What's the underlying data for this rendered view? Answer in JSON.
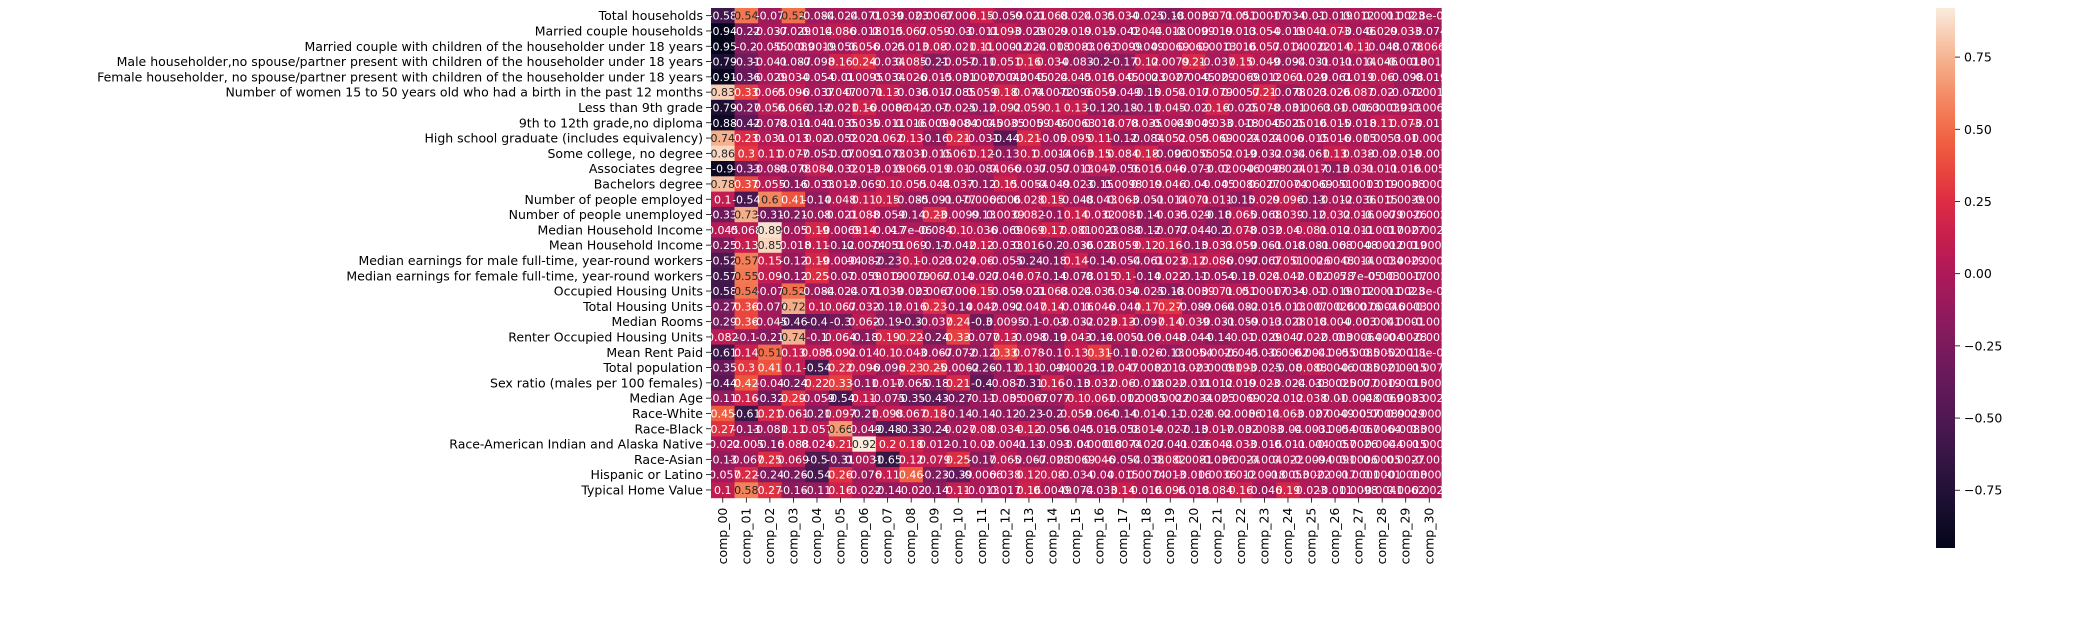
{
  "chart_data": {
    "type": "heatmap",
    "title": "",
    "xlabel": "",
    "ylabel": "",
    "colormap": "rocket",
    "vmin": -0.95,
    "vmax": 0.92,
    "colorbar_ticks": [
      {
        "value": 0.75,
        "label": "0.75"
      },
      {
        "value": 0.5,
        "label": "0.50"
      },
      {
        "value": 0.25,
        "label": "0.25"
      },
      {
        "value": 0.0,
        "label": "0.00"
      },
      {
        "value": -0.25,
        "label": "−0.25"
      },
      {
        "value": -0.5,
        "label": "−0.50"
      },
      {
        "value": -0.75,
        "label": "−0.75"
      }
    ],
    "x_labels": [
      "comp_00",
      "comp_01",
      "comp_02",
      "comp_03",
      "comp_04",
      "comp_05",
      "comp_06",
      "comp_07",
      "comp_08",
      "comp_09",
      "comp_10",
      "comp_11",
      "comp_12",
      "comp_13",
      "comp_14",
      "comp_15",
      "comp_16",
      "comp_17",
      "comp_18",
      "comp_19",
      "comp_20",
      "comp_21",
      "comp_22",
      "comp_23",
      "comp_24",
      "comp_25",
      "comp_26",
      "comp_27",
      "comp_28",
      "comp_29",
      "comp_30"
    ],
    "y_labels": [
      "Total households",
      "Married couple households",
      "Married couple with children of the householder under 18 years",
      "Male householder,no spouse/partner present with children of the householder under 18 years",
      "Female householder, no spouse/partner present with children of the householder under 18 years",
      "Number of women 15 to 50 years old who had a birth in the past 12 months",
      "Less than 9th grade",
      "9th to 12th grade,no diploma",
      "High school graduate (includes equivalency)",
      "Some college, no degree",
      "Associates degree",
      "Bachelors degree",
      "Number of people employed",
      "Number of people unemployed",
      "Median Household Income",
      "Mean Household Income",
      "Median earnings for male full-time, year-round workers",
      "Median earnings for female full-time, year-round workers",
      "Occupied Housing Units",
      "Total Housing Units",
      "Median Rooms",
      "Renter Occupied Housing Units",
      "Mean Rent Paid",
      "Total population",
      "Sex ratio (males per 100 females)",
      "Median Age",
      "Race-White",
      "Race-Black",
      "Race-American Indian and Alaska Native",
      "Race-Asian",
      "Hispanic or Latino",
      "Typical Home Value"
    ],
    "values": [
      [
        -0.58,
        0.54,
        -0.07,
        0.52,
        -0.084,
        -0.024,
        -0.071,
        0.039,
        -0.023,
        0.0067,
        -0.006,
        0.15,
        -0.059,
        -0.021,
        0.068,
        0.024,
        0.035,
        0.034,
        -0.025,
        -0.18,
        -0.0039,
        0.071,
        0.051,
        0.00017,
        -0.034,
        -0.01,
        -0.019,
        0.012,
        0.0011,
        0.0023,
        2.8e-05
      ],
      [
        -0.94,
        -0.22,
        -0.037,
        -0.029,
        0.014,
        0.086,
        -0.018,
        0.015,
        0.067,
        0.059,
        -0.03,
        -0.011,
        0.093,
        -0.029,
        0.029,
        0.019,
        0.015,
        -0.042,
        0.044,
        0.018,
        -0.0099,
        0.019,
        0.013,
        0.054,
        -0.019,
        0.041,
        0.073,
        -0.046,
        0.029,
        0.033,
        -0.074
      ],
      [
        -0.95,
        -0.2,
        -0.055,
        -0.0089,
        0.0019,
        -0.056,
        0.056,
        -0.025,
        -0.013,
        0.08,
        -0.021,
        0.11,
        -0.00012,
        -0.024,
        -0.018,
        0.0083,
        -0.063,
        0.0099,
        -0.049,
        0.0069,
        0.069,
        0.0013,
        0.016,
        0.057,
        0.014,
        0.0022,
        0.014,
        0.11,
        -0.048,
        -0.078,
        0.066
      ],
      [
        -0.79,
        -0.31,
        -0.041,
        -0.087,
        -0.098,
        0.16,
        0.24,
        -0.034,
        0.085,
        -0.21,
        -0.057,
        -0.11,
        0.051,
        0.16,
        0.034,
        -0.083,
        -0.2,
        -0.17,
        0.12,
        0.0079,
        0.21,
        -0.037,
        0.15,
        0.049,
        -0.094,
        -0.031,
        -0.011,
        -0.014,
        0.046,
        -0.0018,
        0.0018
      ],
      [
        -0.91,
        -0.36,
        -0.029,
        0.034,
        -0.054,
        -0.01,
        0.0095,
        -0.034,
        0.026,
        -0.015,
        -0.031,
        0.0077,
        -0.0042,
        0.0045,
        0.024,
        0.045,
        0.015,
        0.045,
        0.0023,
        0.0027,
        -0.0045,
        -0.029,
        0.0069,
        -0.012,
        0.061,
        0.029,
        -0.061,
        0.019,
        0.06,
        -0.098,
        -0.019
      ],
      [
        0.83,
        0.33,
        0.065,
        0.096,
        -0.037,
        0.047,
        0.0071,
        0.13,
        -0.036,
        -0.017,
        -0.085,
        0.059,
        0.18,
        0.074,
        -0.0072,
        -0.096,
        0.059,
        -0.049,
        -0.15,
        0.054,
        0.017,
        0.079,
        0.0057,
        0.21,
        -0.078,
        0.023,
        0.026,
        0.087,
        0.02,
        -0.072,
        -0.0018
      ],
      [
        -0.79,
        -0.27,
        0.056,
        0.066,
        -0.12,
        -0.021,
        0.16,
        -0.0086,
        0.042,
        -0.07,
        -0.025,
        -0.12,
        0.092,
        0.059,
        0.1,
        0.13,
        -0.12,
        -0.18,
        -0.11,
        0.045,
        -0.02,
        0.16,
        -0.025,
        0.078,
        -0.031,
        0.0063,
        0.01,
        -0.0063,
        -0.00039,
        0.013,
        -0.0068
      ],
      [
        -0.88,
        -0.42,
        -0.078,
        -0.011,
        -0.041,
        -0.035,
        0.035,
        -0.011,
        0.016,
        -0.0094,
        0.0084,
        -0.0045,
        0.0035,
        -0.0059,
        0.046,
        0.0063,
        0.018,
        0.078,
        0.035,
        -0.0049,
        -0.0049,
        0.033,
        -0.018,
        -0.0045,
        -0.025,
        0.016,
        0.015,
        -0.018,
        0.11,
        0.073,
        -0.017
      ],
      [
        0.74,
        0.23,
        0.031,
        0.013,
        0.02,
        -0.052,
        0.021,
        0.062,
        0.13,
        -0.16,
        0.21,
        -0.031,
        -0.44,
        0.21,
        -0.05,
        0.095,
        0.11,
        -0.12,
        -0.084,
        0.052,
        0.055,
        0.069,
        0.0024,
        -0.024,
        0.006,
        -0.015,
        0.016,
        -0.015,
        0.0053,
        0.01,
        -0.0003
      ],
      [
        0.86,
        0.3,
        0.11,
        0.077,
        -0.051,
        -0.07,
        0.0091,
        -0.073,
        0.031,
        -0.015,
        0.061,
        0.12,
        -0.13,
        0.1,
        0.0014,
        -0.063,
        0.15,
        0.084,
        0.18,
        -0.096,
        0.0055,
        0.052,
        0.019,
        -0.032,
        -0.034,
        -0.061,
        0.13,
        0.038,
        -0.02,
        0.018,
        -0.007
      ],
      [
        -0.9,
        -0.33,
        -0.088,
        -0.078,
        0.084,
        -0.032,
        0.013,
        -0.019,
        0.065,
        0.019,
        0.01,
        -0.084,
        0.066,
        -0.037,
        -0.057,
        -0.013,
        0.047,
        -0.056,
        0.015,
        0.046,
        -0.073,
        -0.02,
        0.0046,
        -0.0098,
        -0.024,
        0.017,
        -0.13,
        0.031,
        0.011,
        0.016,
        0.005
      ],
      [
        0.78,
        0.37,
        0.055,
        -0.16,
        -0.033,
        0.012,
        -0.069,
        0.1,
        0.055,
        0.044,
        0.037,
        -0.12,
        0.15,
        0.0054,
        -0.049,
        -0.023,
        -0.15,
        0.0098,
        0.019,
        0.046,
        -0.04,
        -0.045,
        0.0086,
        0.027,
        0.0074,
        -0.0069,
        -0.051,
        -0.0013,
        0.019,
        0.0038,
        -0.0009
      ],
      [
        0.1,
        -0.54,
        0.6,
        0.41,
        -0.14,
        0.048,
        0.11,
        0.15,
        -0.085,
        -0.091,
        -0.077,
        -0.0066,
        0.006,
        0.028,
        0.15,
        -0.048,
        -0.043,
        0.063,
        -0.051,
        -0.014,
        0.071,
        0.011,
        -0.15,
        0.029,
        0.096,
        -0.13,
        -0.012,
        -0.036,
        0.015,
        0.0039,
        -0.001
      ],
      [
        -0.33,
        0.73,
        -0.31,
        -0.21,
        -0.08,
        -0.021,
        0.088,
        -0.059,
        -0.14,
        0.23,
        -0.0099,
        -0.13,
        0.0039,
        0.082,
        -0.1,
        0.14,
        0.032,
        0.0081,
        -0.14,
        -0.035,
        -0.029,
        -0.18,
        0.065,
        -0.068,
        0.039,
        -0.12,
        0.032,
        0.016,
        -0.0079,
        -0.0026,
        -0.002
      ],
      [
        0.045,
        0.068,
        0.89,
        -0.05,
        0.19,
        -0.0069,
        0.14,
        -0.017,
        4.7e-06,
        -0.084,
        0.1,
        0.036,
        -0.069,
        0.069,
        0.17,
        0.081,
        0.0023,
        -0.088,
        -0.12,
        -0.077,
        -0.044,
        -0.2,
        0.078,
        -0.032,
        0.04,
        0.081,
        0.012,
        0.011,
        -0.0017,
        0.0027,
        -0.0022
      ],
      [
        -0.25,
        0.13,
        0.85,
        -0.018,
        0.11,
        -0.12,
        -0.0074,
        -0.051,
        0.069,
        -0.17,
        -0.042,
        0.12,
        -0.033,
        0.016,
        -0.2,
        -0.036,
        -0.028,
        0.059,
        0.12,
        0.16,
        -0.13,
        0.033,
        0.059,
        -0.061,
        -0.018,
        -0.081,
        -0.068,
        0.0048,
        -0.0012,
        -0.0019,
        0.0004
      ],
      [
        -0.52,
        0.57,
        0.15,
        -0.12,
        0.19,
        -0.0094,
        -0.082,
        -0.23,
        0.1,
        -0.023,
        -0.024,
        0.06,
        -0.055,
        -0.24,
        -0.18,
        0.14,
        -0.14,
        -0.054,
        -0.061,
        0.023,
        0.12,
        0.086,
        -0.097,
        -0.067,
        0.051,
        0.0026,
        0.0048,
        0.014,
        -0.0034,
        0.0029,
        -0.0005
      ],
      [
        -0.57,
        0.55,
        0.09,
        -0.12,
        0.25,
        -0.07,
        -0.059,
        0.019,
        0.0079,
        0.067,
        0.014,
        -0.027,
        -0.046,
        0.07,
        -0.14,
        -0.078,
        -0.015,
        0.1,
        -0.14,
        0.022,
        -0.11,
        -0.054,
        -0.13,
        0.024,
        0.042,
        -0.012,
        0.0078,
        -5.7e-05,
        -0.003,
        -0.0017,
        -0.001
      ],
      [
        -0.58,
        0.54,
        -0.07,
        0.52,
        -0.084,
        -0.024,
        -0.071,
        0.039,
        -0.023,
        0.0067,
        -0.006,
        0.15,
        -0.059,
        -0.021,
        0.068,
        0.024,
        0.035,
        0.034,
        -0.025,
        -0.18,
        -0.0039,
        0.071,
        0.051,
        0.00017,
        -0.034,
        -0.01,
        -0.019,
        0.012,
        0.0011,
        0.0023,
        2.8e-05
      ],
      [
        -0.27,
        0.36,
        -0.077,
        0.72,
        0.1,
        0.067,
        0.032,
        -0.12,
        0.016,
        0.23,
        -0.14,
        0.042,
        -0.092,
        -0.047,
        0.14,
        -0.016,
        0.046,
        -0.044,
        0.17,
        0.27,
        -0.089,
        -0.064,
        -0.082,
        -0.015,
        -0.013,
        0.007,
        0.0026,
        0.00076,
        0.00046,
        -0.0003,
        -0.001
      ],
      [
        -0.29,
        0.36,
        -0.045,
        -0.46,
        -0.4,
        -0.3,
        0.062,
        -0.19,
        -0.3,
        -0.037,
        0.24,
        -0.3,
        0.0095,
        -0.1,
        -0.03,
        -0.032,
        -0.023,
        0.13,
        -0.097,
        0.14,
        0.039,
        -0.031,
        -0.059,
        -0.013,
        -0.028,
        0.018,
        0.004,
        -0.003,
        0.0041,
        0.0001,
        -0.001
      ],
      [
        0.082,
        -0.1,
        -0.21,
        0.74,
        -0.1,
        0.064,
        -0.18,
        0.19,
        0.22,
        -0.24,
        0.33,
        -0.077,
        0.13,
        -0.098,
        -0.19,
        0.043,
        -0.14,
        -0.0051,
        -0.06,
        0.048,
        -0.044,
        -0.14,
        -0.01,
        -0.029,
        0.047,
        0.022,
        -0.003,
        0.00064,
        -0.0004,
        -0.0028,
        -0.001
      ],
      [
        -0.61,
        0.14,
        0.51,
        0.13,
        0.085,
        0.092,
        0.014,
        0.1,
        0.043,
        -0.067,
        -0.072,
        -0.12,
        0.33,
        0.078,
        -0.1,
        0.13,
        0.31,
        -0.11,
        0.026,
        -0.13,
        0.0054,
        -0.0026,
        -0.045,
        -0.036,
        -0.0062,
        -0.0041,
        -0.0055,
        -0.0085,
        0.0052,
        -0.0011,
        1.8e-05
      ],
      [
        -0.35,
        0.3,
        0.41,
        0.1,
        -0.54,
        0.22,
        0.096,
        -0.096,
        0.23,
        0.25,
        -0.0062,
        -0.26,
        -0.11,
        0.11,
        -0.094,
        -0.0023,
        -0.12,
        0.047,
        -0.0082,
        0.013,
        0.023,
        -0.00091,
        0.093,
        -0.025,
        -0.08,
        0.088,
        0.0046,
        -0.0085,
        0.0021,
        -0.0015,
        -0.0072
      ],
      [
        -0.44,
        0.42,
        -0.04,
        -0.24,
        0.22,
        0.33,
        -0.11,
        0.017,
        -0.065,
        -0.18,
        0.21,
        -0.4,
        -0.087,
        -0.31,
        0.16,
        -0.13,
        0.032,
        0.06,
        -0.018,
        0.022,
        -0.011,
        0.012,
        0.019,
        0.023,
        -0.024,
        -0.033,
        -0.0025,
        0.0077,
        0.0019,
        -0.0015,
        0.0009
      ],
      [
        -0.11,
        0.16,
        -0.32,
        0.29,
        -0.059,
        -0.54,
        0.11,
        -0.075,
        -0.35,
        -0.43,
        -0.27,
        -0.11,
        -0.035,
        0.0067,
        -0.077,
        0.1,
        0.061,
        -0.012,
        0.0035,
        0.0022,
        0.0034,
        -0.025,
        0.0069,
        0.022,
        0.012,
        0.038,
        0.01,
        -0.0048,
        -0.0069,
        0.0033,
        -0.0021
      ],
      [
        0.45,
        -0.61,
        0.21,
        0.061,
        -0.21,
        0.097,
        -0.21,
        0.098,
        0.067,
        0.18,
        -0.14,
        -0.14,
        -0.12,
        -0.23,
        -0.2,
        0.059,
        -0.064,
        -0.14,
        -0.014,
        -0.11,
        -0.028,
        -0.02,
        -0.0086,
        0.014,
        0.063,
        -0.027,
        0.0049,
        -0.0057,
        0.00089,
        0.0029,
        0.0005
      ],
      [
        0.27,
        -0.13,
        -0.081,
        0.11,
        0.057,
        0.66,
        -0.049,
        -0.48,
        -0.33,
        -0.24,
        -0.027,
        0.08,
        0.034,
        0.12,
        -0.056,
        -0.045,
        -0.015,
        -0.058,
        0.014,
        -0.027,
        -0.13,
        0.017,
        -0.032,
        0.0083,
        -0.04,
        -0.0031,
        -0.0054,
        -0.0067,
        0.0064,
        -0.0083,
        0.0002
      ],
      [
        -0.022,
        -0.005,
        -0.16,
        0.088,
        0.024,
        0.21,
        0.92,
        0.2,
        0.18,
        0.012,
        -0.1,
        0.02,
        -0.0041,
        -0.13,
        -0.093,
        -0.04,
        0.00018,
        0.0074,
        -0.027,
        -0.041,
        -0.026,
        0.044,
        0.033,
        -0.016,
        -0.011,
        -0.004,
        -0.0057,
        0.0026,
        -0.0044,
        -0.0015,
        -0.0006
      ],
      [
        -0.13,
        -0.067,
        0.25,
        0.069,
        -0.5,
        -0.31,
        0.0031,
        -0.65,
        0.12,
        0.079,
        0.25,
        -0.17,
        0.065,
        -0.067,
        -0.028,
        0.0069,
        0.046,
        -0.054,
        -0.038,
        0.082,
        0.0081,
        -0.036,
        0.0024,
        -0.004,
        0.022,
        -0.0094,
        -0.0091,
        0.0006,
        0.0005,
        0.0027,
        -0.001
      ],
      [
        -0.057,
        0.22,
        -0.24,
        -0.26,
        -0.54,
        0.26,
        -0.076,
        0.11,
        0.46,
        -0.23,
        -0.39,
        -0.0066,
        0.038,
        0.12,
        0.08,
        -0.034,
        -0.04,
        0.015,
        0.0074,
        0.013,
        -0.016,
        0.0036,
        0.012,
        -0.0018,
        -0.0053,
        0.0022,
        -0.0017,
        -0.0001,
        0.0001,
        -0.0008,
        0.0001
      ],
      [
        0.1,
        0.58,
        0.27,
        -0.16,
        -0.11,
        0.16,
        -0.022,
        -0.14,
        -0.02,
        -0.14,
        0.11,
        -0.013,
        0.017,
        0.16,
        0.0049,
        -0.074,
        -0.033,
        0.14,
        0.016,
        0.096,
        0.018,
        0.084,
        0.16,
        -0.046,
        0.19,
        0.023,
        -0.011,
        0.0098,
        -0.0041,
        0.0062,
        -0.0024
      ]
    ]
  }
}
